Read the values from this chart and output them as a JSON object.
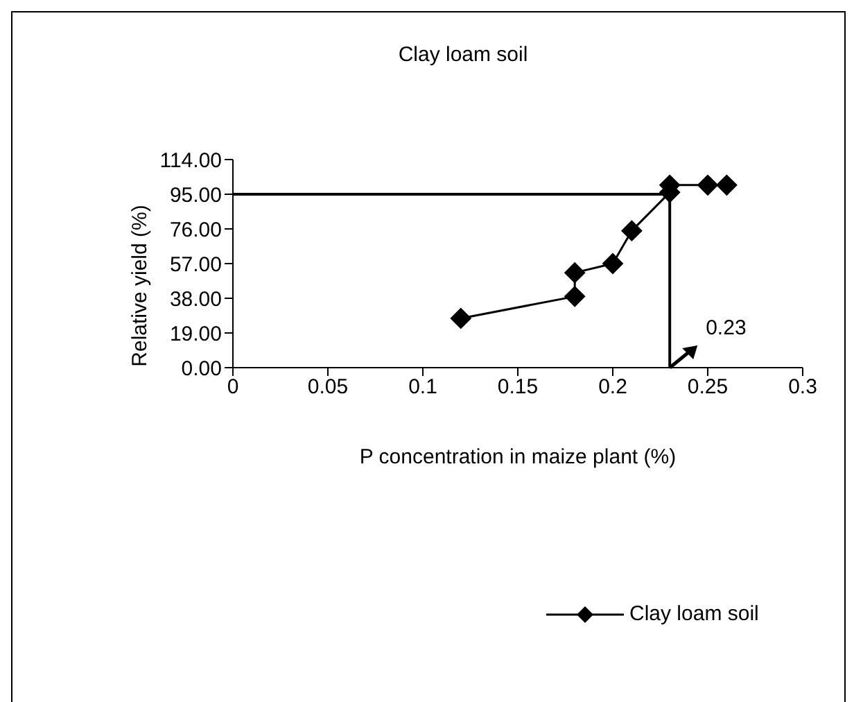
{
  "chart_data": {
    "type": "line",
    "title": "Clay loam soil",
    "xlabel": "P concentration in maize plant (%)",
    "ylabel": "Relative yield (%)",
    "series": [
      {
        "name": "Clay loam soil",
        "color": "#000000",
        "x": [
          0.12,
          0.18,
          0.18,
          0.2,
          0.21,
          0.23,
          0.23,
          0.25,
          0.26
        ],
        "values": [
          27,
          39,
          52,
          57,
          75,
          96,
          100,
          100,
          100
        ]
      }
    ],
    "xlim": [
      0,
      0.3
    ],
    "xticks": [
      0,
      0.05,
      0.1,
      0.15,
      0.2,
      0.25,
      0.3
    ],
    "ylim": [
      0,
      114
    ],
    "yticks": [
      {
        "value": 0,
        "label": "0.00"
      },
      {
        "value": 19,
        "label": "19.00"
      },
      {
        "value": 38,
        "label": "38.00"
      },
      {
        "value": 57,
        "label": "57.00"
      },
      {
        "value": 76,
        "label": "76.00"
      },
      {
        "value": 95,
        "label": "95.00"
      },
      {
        "value": 114,
        "label": "114.00"
      }
    ],
    "ref_lines": [
      {
        "axis": "y",
        "value": 95,
        "color": "#000000"
      },
      {
        "axis": "x",
        "value": 0.23,
        "color": "#000000"
      }
    ],
    "annotations": [
      {
        "text": "0.23",
        "x": 0.23,
        "y": 0
      }
    ],
    "marker": "diamond",
    "line_style": "solid",
    "grid": false,
    "legend": "bottom right"
  }
}
